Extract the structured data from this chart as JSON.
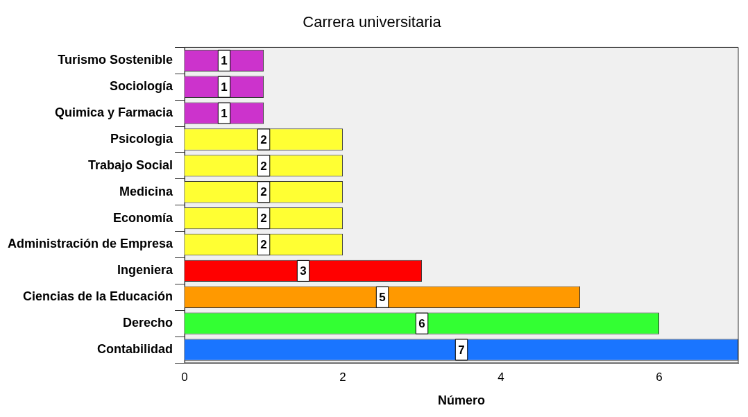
{
  "chart_data": {
    "type": "bar",
    "orientation": "horizontal",
    "title": "Carrera universitaria",
    "xlabel": "Número",
    "categories": [
      "Turismo Sostenible",
      "Sociología",
      "Quimica y Farmacia",
      "Psicologia",
      "Trabajo Social",
      "Medicina",
      "Economía",
      "Administración de Empresa",
      "Ingeniera",
      "Ciencias de la Educación",
      "Derecho",
      "Contabilidad"
    ],
    "values": [
      1,
      1,
      1,
      2,
      2,
      2,
      2,
      2,
      3,
      5,
      6,
      7
    ],
    "colors": [
      "#cc33cc",
      "#cc33cc",
      "#cc33cc",
      "#ffff33",
      "#ffff33",
      "#ffff33",
      "#ffff33",
      "#ffff33",
      "#ff0000",
      "#ff9900",
      "#33ff33",
      "#1a75ff"
    ],
    "xlim": [
      0,
      7
    ],
    "xticks": [
      0,
      2,
      4,
      6
    ],
    "data_labels": true,
    "grid": false,
    "legend": false
  }
}
